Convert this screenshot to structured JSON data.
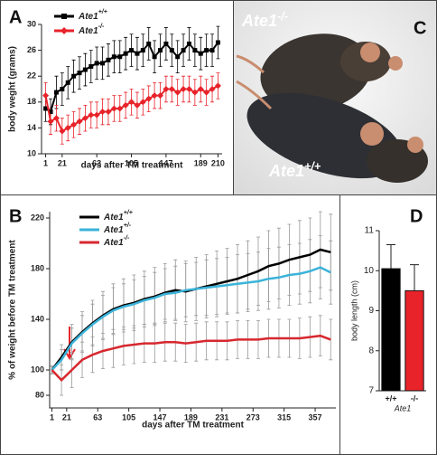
{
  "chart_data": [
    {
      "type": "line",
      "panel_label": "A",
      "xlabel": "days after TM treatment",
      "ylabel": "body weght (grams)",
      "x": [
        1,
        7,
        14,
        21,
        28,
        35,
        42,
        49,
        56,
        63,
        70,
        77,
        84,
        91,
        98,
        105,
        112,
        119,
        126,
        133,
        140,
        147,
        154,
        161,
        168,
        175,
        182,
        189,
        196,
        203,
        210
      ],
      "series": [
        {
          "name": "Ate1+/+",
          "color": "#000000",
          "marker": "square",
          "values": [
            17,
            16.5,
            19.5,
            20,
            21,
            22,
            22.5,
            23,
            23.5,
            24,
            24,
            24.5,
            25,
            25,
            25.5,
            26,
            25.5,
            26,
            27,
            25,
            26,
            27,
            26,
            25,
            26,
            27,
            26,
            25.5,
            26,
            26,
            27.2
          ],
          "errors": [
            2,
            2,
            2.5,
            2.5,
            2.5,
            2.5,
            2.5,
            2.5,
            2.5,
            2.5,
            2.5,
            2.5,
            2.5,
            2.5,
            2.5,
            2.5,
            2.5,
            2.5,
            2.5,
            2.5,
            2.5,
            2.5,
            2.5,
            2.5,
            2.5,
            2.5,
            2.5,
            2.5,
            2.5,
            2.5,
            2.5
          ]
        },
        {
          "name": "Ate1-/-",
          "color": "#e8232a",
          "marker": "diamond",
          "values": [
            19,
            15,
            15.5,
            13.5,
            14,
            14.5,
            15,
            15.5,
            16,
            16,
            16.5,
            16.5,
            17,
            17,
            17.5,
            18,
            17.5,
            18,
            18.5,
            19,
            19,
            20,
            20,
            19.5,
            20,
            20,
            19.5,
            20,
            19.5,
            20,
            20.5
          ],
          "errors": [
            2,
            2,
            2,
            2,
            2,
            2,
            2,
            2,
            2,
            2,
            2,
            2,
            2,
            2,
            2,
            2,
            2,
            2,
            2,
            2,
            2,
            2,
            2,
            2,
            2,
            2,
            2,
            2,
            2,
            2,
            2
          ]
        }
      ],
      "xlim": [
        -4,
        215
      ],
      "xticks": [
        1,
        21,
        63,
        105,
        147,
        189,
        210
      ],
      "ylim": [
        10,
        30
      ],
      "yticks": [
        10,
        14,
        18,
        22,
        26,
        30
      ]
    },
    {
      "type": "line",
      "panel_label": "B",
      "xlabel": "days after TM treatment",
      "ylabel": "% of weight before TM treatment",
      "x": [
        1,
        14,
        28,
        42,
        56,
        70,
        84,
        98,
        112,
        126,
        140,
        154,
        168,
        182,
        196,
        210,
        224,
        238,
        252,
        266,
        280,
        294,
        308,
        322,
        336,
        350,
        364,
        378
      ],
      "series": [
        {
          "name": "Ate1+/+",
          "color": "#000000",
          "values": [
            100,
            110,
            122,
            130,
            137,
            143,
            148,
            151,
            153,
            156,
            158,
            161,
            163,
            162,
            164,
            166,
            168,
            170,
            172,
            175,
            178,
            182,
            184,
            187,
            189,
            191,
            195,
            193
          ],
          "errors": [
            3,
            10,
            14,
            16,
            18,
            19,
            20,
            21,
            22,
            22,
            23,
            23,
            24,
            24,
            25,
            25,
            26,
            26,
            27,
            27,
            27,
            28,
            28,
            28,
            29,
            29,
            30,
            30
          ]
        },
        {
          "name": "Ate1+/-",
          "color": "#3bb3d9",
          "values": [
            100,
            108,
            121,
            129,
            136,
            142,
            147,
            150,
            152,
            155,
            157,
            160,
            161,
            163,
            164,
            165,
            166,
            167,
            168,
            169,
            170,
            172,
            173,
            175,
            176,
            178,
            181,
            177
          ],
          "errors": [
            3,
            8,
            12,
            14,
            16,
            17,
            18,
            18,
            19,
            19,
            20,
            20,
            21,
            21,
            21,
            22,
            22,
            22,
            23,
            23,
            23,
            24,
            24,
            24,
            24,
            25,
            25,
            25
          ]
        },
        {
          "name": "Ate1-/-",
          "color": "#d7282f",
          "values": [
            100,
            92,
            100,
            108,
            112,
            115,
            117,
            119,
            120,
            121,
            121,
            122,
            122,
            121,
            122,
            123,
            123,
            123,
            124,
            124,
            124,
            125,
            125,
            125,
            125,
            126,
            127,
            124
          ],
          "errors": [
            3,
            12,
            14,
            14,
            14,
            14,
            15,
            15,
            15,
            15,
            15,
            15,
            15,
            15,
            15,
            15,
            15,
            15,
            15,
            15,
            15,
            15,
            15,
            15,
            16,
            16,
            16,
            16
          ]
        }
      ],
      "xlim": [
        -2,
        385
      ],
      "xticks": [
        1,
        21,
        63,
        105,
        147,
        189,
        231,
        273,
        315,
        357
      ],
      "ylim": [
        70,
        225
      ],
      "yticks": [
        80,
        100,
        140,
        180,
        220
      ]
    },
    {
      "type": "bar",
      "panel_label": "D",
      "xlabel": "Ate1",
      "ylabel": "body length (cm)",
      "categories": [
        "+/+",
        "-/-"
      ],
      "values": [
        10.05,
        9.5
      ],
      "errors": [
        0.6,
        0.65
      ],
      "colors": [
        "#000000",
        "#e8232a"
      ],
      "ylim": [
        7,
        11
      ],
      "yticks": [
        7,
        8,
        9,
        10,
        11
      ]
    }
  ],
  "photo": {
    "panel_label": "C",
    "labels": [
      "Ate1-/-",
      "Ate1+/+"
    ]
  }
}
